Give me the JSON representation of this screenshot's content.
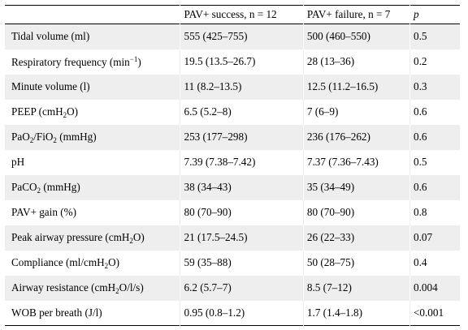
{
  "header": {
    "col0": "",
    "col1": "PAV+ success, n = 12",
    "col2": "PAV+ failure, n = 7",
    "col3": "p"
  },
  "rows": [
    {
      "label": [
        {
          "t": "Tidal volume (ml)"
        }
      ],
      "success": "555 (425–755)",
      "failure": "500 (460–550)",
      "p": "0.5"
    },
    {
      "label": [
        {
          "t": "Respiratory frequency (min"
        },
        {
          "t": "−1",
          "sup": true
        },
        {
          "t": ")"
        }
      ],
      "success": "19.5 (13.5–26.7)",
      "failure": "28 (13–36)",
      "p": "0.2"
    },
    {
      "label": [
        {
          "t": "Minute volume (l)"
        }
      ],
      "success": "11 (8.2–13.5)",
      "failure": "12.5 (11.2–16.5)",
      "p": "0.3"
    },
    {
      "label": [
        {
          "t": "PEEP (cmH"
        },
        {
          "t": "2",
          "sub": true
        },
        {
          "t": "O)"
        }
      ],
      "success": "6.5 (5.2–8)",
      "failure": "7 (6–9)",
      "p": "0.6"
    },
    {
      "label": [
        {
          "t": "PaO"
        },
        {
          "t": "2",
          "sub": true
        },
        {
          "t": "/FiO"
        },
        {
          "t": "2",
          "sub": true
        },
        {
          "t": " (mmHg)"
        }
      ],
      "success": "253 (177–298)",
      "failure": "236 (176–262)",
      "p": "0.6"
    },
    {
      "label": [
        {
          "t": "pH"
        }
      ],
      "success": "7.39 (7.38–7.42)",
      "failure": "7.37 (7.36–7.43)",
      "p": "0.5"
    },
    {
      "label": [
        {
          "t": "PaCO"
        },
        {
          "t": "2",
          "sub": true
        },
        {
          "t": " (mmHg)"
        }
      ],
      "success": "38 (34–43)",
      "failure": "35 (34–49)",
      "p": "0.6"
    },
    {
      "label": [
        {
          "t": "PAV+ gain (%)"
        }
      ],
      "success": "80 (70–90)",
      "failure": "80 (70–90)",
      "p": "0.8"
    },
    {
      "label": [
        {
          "t": "Peak airway pressure (cmH"
        },
        {
          "t": "2",
          "sub": true
        },
        {
          "t": "O)"
        }
      ],
      "success": "21 (17.5–24.5)",
      "failure": "26 (22–33)",
      "p": "0.07"
    },
    {
      "label": [
        {
          "t": "Compliance (ml/cmH"
        },
        {
          "t": "2",
          "sub": true
        },
        {
          "t": "O)"
        }
      ],
      "success": "59 (35–88)",
      "failure": "50 (28–75)",
      "p": "0.4"
    },
    {
      "label": [
        {
          "t": "Airway resistance (cmH"
        },
        {
          "t": "2",
          "sub": true
        },
        {
          "t": "O/l/s)"
        }
      ],
      "success": "6.2 (5.7–7)",
      "failure": "8.5 (7–12)",
      "p": "0.004"
    },
    {
      "label": [
        {
          "t": "WOB per breath (J/l)"
        }
      ],
      "success": "0.95 (0.8–1.2)",
      "failure": "1.7 (1.4–1.8)",
      "p": "<0.001"
    }
  ]
}
